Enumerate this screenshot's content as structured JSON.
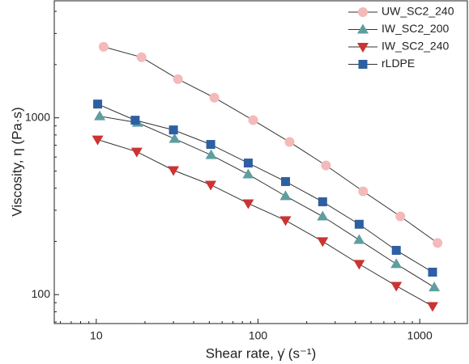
{
  "chart_data": {
    "type": "line",
    "x_label": "Shear rate, γ̇ (s⁻¹)",
    "y_label": "Viscosity, η (Pa·s)",
    "xscale": "log",
    "yscale": "log",
    "xlim": [
      5.5,
      1970
    ],
    "ylim": [
      68.6,
      4590
    ],
    "xticks": [
      10,
      100,
      1000
    ],
    "yticks": [
      100,
      1000
    ],
    "line_color": "#333333",
    "legend": "upper right",
    "series": [
      {
        "name": "UW_SC2_240",
        "color": "#f4b9b9",
        "marker": "circle",
        "x": [
          11.1,
          19.05,
          32,
          53.7,
          93.3,
          156.7,
          263,
          446.7,
          758.6,
          1288
        ],
        "values": [
          2520,
          2200,
          1655,
          1300,
          970,
          730,
          538,
          384,
          277,
          196
        ]
      },
      {
        "name": "IW_SC2_200",
        "color": "#5f9ea0",
        "marker": "triangle-up",
        "x": [
          10.5,
          18,
          30.5,
          51.3,
          87,
          148,
          251,
          422,
          716,
          1230
        ],
        "values": [
          1021,
          939,
          761,
          616,
          479,
          361,
          277,
          204,
          149,
          110
        ]
      },
      {
        "name": "IW_SC2_240",
        "color": "#cc3333",
        "marker": "triangle-down",
        "x": [
          10.2,
          17.8,
          30,
          51,
          87,
          148,
          251,
          422,
          716,
          1200
        ],
        "values": [
          753,
          643,
          505,
          418,
          328,
          263,
          200,
          149,
          112,
          86
        ]
      },
      {
        "name": "rLDPE",
        "color": "#2e5fa3",
        "marker": "square",
        "x": [
          10.2,
          17.4,
          30,
          51,
          87,
          148,
          251,
          422,
          716,
          1200
        ],
        "values": [
          1196,
          969,
          854,
          707,
          555,
          436,
          335,
          250,
          178,
          134
        ]
      }
    ]
  }
}
